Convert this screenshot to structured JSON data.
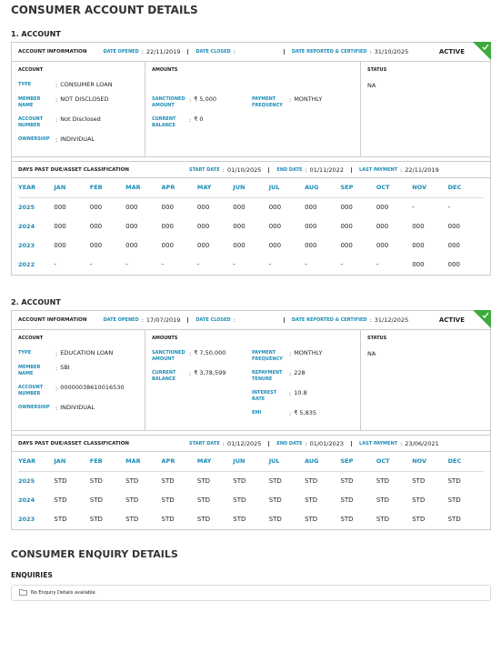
{
  "title": "CONSUMER ACCOUNT DETAILS",
  "accounts": [
    {
      "heading": "1. ACCOUNT",
      "info_label": "ACCOUNT INFORMATION",
      "date_opened_label": "DATE OPENED",
      "date_opened": "22/11/2019",
      "date_closed_label": "DATE CLOSED",
      "date_reported_label": "DATE REPORTED & CERTIFIED",
      "date_reported": "31/10/2025",
      "status_badge": "ACTIVE",
      "account": {
        "header": "ACCOUNT",
        "fields": [
          {
            "label": "TYPE",
            "value": "CONSUMER LOAN"
          },
          {
            "label": "MEMBER NAME",
            "value": "NOT DISCLOSED"
          },
          {
            "label": "ACCOUNT NUMBER",
            "value": "Not Disclosed"
          },
          {
            "label": "OWNERSHIP",
            "value": "INDIVIDUAL"
          }
        ]
      },
      "amounts": {
        "header": "AMOUNTS",
        "left": [
          {
            "label": "SANCTIONED AMOUNT",
            "value": "₹ 5,000"
          },
          {
            "label": "CURRENT BALANCE",
            "value": "₹ 0"
          }
        ],
        "right": [
          {
            "label": "PAYMENT FREQUENCY",
            "value": "MONTHLY"
          }
        ]
      },
      "status": {
        "header": "STATUS",
        "value": "NA"
      },
      "dpd": {
        "label": "DAYS PAST DUE/ASSET CLASSIFICATION",
        "start_label": "START DATE",
        "start": "01/10/2025",
        "end_label": "END DATE",
        "end": "01/11/2022",
        "last_label": "LAST PAYMENT",
        "last": "22/11/2019"
      },
      "table": {
        "columns": [
          "YEAR",
          "JAN",
          "FEB",
          "MAR",
          "APR",
          "MAY",
          "JUN",
          "JUL",
          "AUG",
          "SEP",
          "OCT",
          "NOV",
          "DEC"
        ],
        "rows": [
          [
            "2025",
            "000",
            "000",
            "000",
            "000",
            "000",
            "000",
            "000",
            "000",
            "000",
            "000",
            "-",
            "-"
          ],
          [
            "2024",
            "000",
            "000",
            "000",
            "000",
            "000",
            "000",
            "000",
            "000",
            "000",
            "000",
            "000",
            "000"
          ],
          [
            "2023",
            "000",
            "000",
            "000",
            "000",
            "000",
            "000",
            "000",
            "000",
            "000",
            "000",
            "000",
            "000"
          ],
          [
            "2022",
            "-",
            "-",
            "-",
            "-",
            "-",
            "-",
            "-",
            "-",
            "-",
            "-",
            "000",
            "000"
          ]
        ]
      }
    },
    {
      "heading": "2. ACCOUNT",
      "info_label": "ACCOUNT INFORMATION",
      "date_opened_label": "DATE OPENED",
      "date_opened": "17/07/2019",
      "date_closed_label": "DATE CLOSED",
      "date_reported_label": "DATE REPORTED & CERTIFIED",
      "date_reported": "31/12/2025",
      "status_badge": "ACTIVE",
      "account": {
        "header": "ACCOUNT",
        "fields": [
          {
            "label": "TYPE",
            "value": "EDUCATION LOAN"
          },
          {
            "label": "MEMBER NAME",
            "value": "SBI"
          },
          {
            "label": "ACCOUNT NUMBER",
            "value": "00000038610016530"
          },
          {
            "label": "OWNERSHIP",
            "value": "INDIVIDUAL"
          }
        ]
      },
      "amounts": {
        "header": "AMOUNTS",
        "left": [
          {
            "label": "SANCTIONED AMOUNT",
            "value": "₹ 7,50,000"
          },
          {
            "label": "CURRENT BALANCE",
            "value": "₹ 3,78,599"
          }
        ],
        "right": [
          {
            "label": "PAYMENT FREQUENCY",
            "value": "MONTHLY"
          },
          {
            "label": "REPAYMENT TENURE",
            "value": "228"
          },
          {
            "label": "INTEREST RATE",
            "value": "10.8"
          },
          {
            "label": "EMI",
            "value": "₹ 5,835"
          }
        ]
      },
      "status": {
        "header": "STATUS",
        "value": "NA"
      },
      "dpd": {
        "label": "DAYS PAST DUE/ASSET CLASSIFICATION",
        "start_label": "START DATE",
        "start": "01/12/2025",
        "end_label": "END DATE",
        "end": "01/01/2023",
        "last_label": "LAST PAYMENT",
        "last": "23/06/2021"
      },
      "table": {
        "columns": [
          "YEAR",
          "JAN",
          "FEB",
          "MAR",
          "APR",
          "MAY",
          "JUN",
          "JUL",
          "AUG",
          "SEP",
          "OCT",
          "NOV",
          "DEC"
        ],
        "rows": [
          [
            "2025",
            "STD",
            "STD",
            "STD",
            "STD",
            "STD",
            "STD",
            "STD",
            "STD",
            "STD",
            "STD",
            "STD",
            "STD"
          ],
          [
            "2024",
            "STD",
            "STD",
            "STD",
            "STD",
            "STD",
            "STD",
            "STD",
            "STD",
            "STD",
            "STD",
            "STD",
            "STD"
          ],
          [
            "2023",
            "STD",
            "STD",
            "STD",
            "STD",
            "STD",
            "STD",
            "STD",
            "STD",
            "STD",
            "STD",
            "STD",
            "STD"
          ]
        ]
      }
    }
  ],
  "enquiry": {
    "title": "CONSUMER ENQUIRY DETAILS",
    "subtitle": "ENQUIRIES",
    "message": "No Enquiry Details available."
  }
}
